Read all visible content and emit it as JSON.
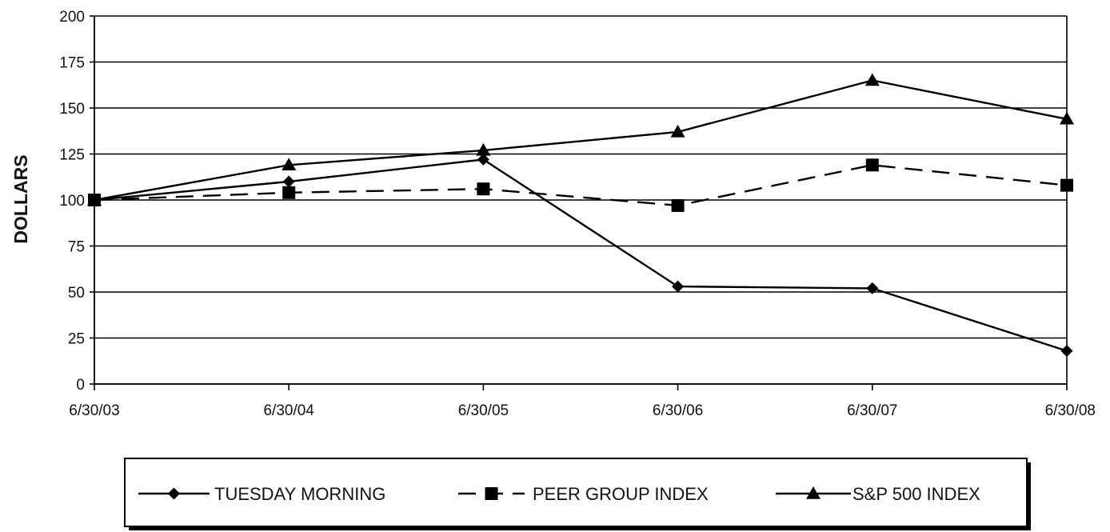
{
  "chart_data": {
    "type": "line",
    "title": "",
    "xlabel": "",
    "ylabel": "DOLLARS",
    "x": [
      "6/30/03",
      "6/30/04",
      "6/30/05",
      "6/30/06",
      "6/30/07",
      "6/30/08"
    ],
    "ylim": [
      0,
      200
    ],
    "yticks": [
      0,
      25,
      50,
      75,
      100,
      125,
      150,
      175,
      200
    ],
    "grid": true,
    "legend": "bottom",
    "series": [
      {
        "name": "TUESDAY MORNING",
        "values": [
          100,
          110,
          122,
          53,
          52,
          18
        ],
        "marker": "diamond",
        "line": "solid",
        "color": "#000000"
      },
      {
        "name": "PEER GROUP INDEX",
        "values": [
          100,
          104,
          106,
          97,
          119,
          108
        ],
        "marker": "square",
        "line": "dashed",
        "color": "#000000"
      },
      {
        "name": "S&P 500 INDEX",
        "values": [
          100,
          119,
          127,
          137,
          165,
          144
        ],
        "marker": "triangle",
        "line": "solid",
        "color": "#000000"
      }
    ]
  }
}
